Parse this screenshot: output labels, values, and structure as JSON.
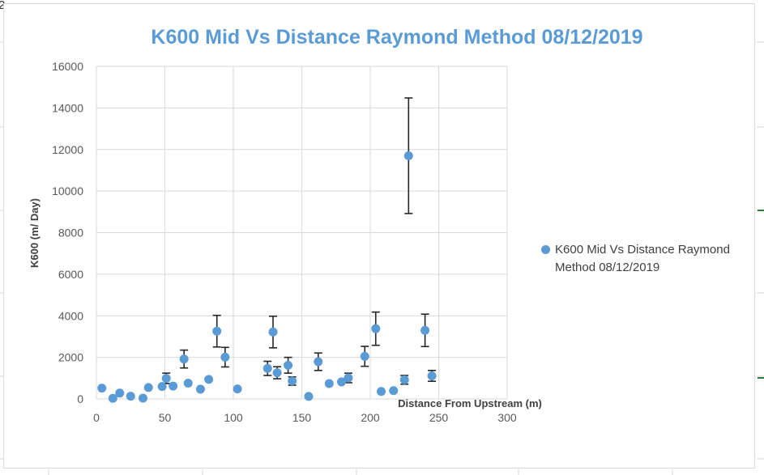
{
  "corner_text": "2",
  "chart_data": {
    "type": "scatter",
    "title": "K600 Mid Vs Distance Raymond Method 08/12/2019",
    "xlabel": "Distance From Upstream (m)",
    "ylabel": "K600 (m/ Day)",
    "xlim": [
      0,
      300
    ],
    "ylim": [
      0,
      16000
    ],
    "x_ticks": [
      "0",
      "50",
      "100",
      "150",
      "200",
      "250",
      "300"
    ],
    "y_ticks": [
      "0",
      "2000",
      "4000",
      "6000",
      "8000",
      "10000",
      "12000",
      "14000",
      "16000"
    ],
    "grid": true,
    "legend_position": "right",
    "series": [
      {
        "name": "K600 Mid Vs Distance Raymond Method 08/12/2019",
        "color": "#5b9bd5",
        "points": [
          {
            "x": 4,
            "y": 520,
            "err": 0
          },
          {
            "x": 12,
            "y": 30,
            "err": 0
          },
          {
            "x": 17,
            "y": 280,
            "err": 0
          },
          {
            "x": 25,
            "y": 130,
            "err": 0
          },
          {
            "x": 34,
            "y": 40,
            "err": 0
          },
          {
            "x": 38,
            "y": 550,
            "err": 0
          },
          {
            "x": 48,
            "y": 600,
            "err": 0
          },
          {
            "x": 51,
            "y": 990,
            "err": 250
          },
          {
            "x": 56,
            "y": 620,
            "err": 0
          },
          {
            "x": 64,
            "y": 1920,
            "err": 430
          },
          {
            "x": 67,
            "y": 760,
            "err": 0
          },
          {
            "x": 76,
            "y": 470,
            "err": 0
          },
          {
            "x": 82,
            "y": 940,
            "err": 0
          },
          {
            "x": 88,
            "y": 3260,
            "err": 760
          },
          {
            "x": 94,
            "y": 2010,
            "err": 470
          },
          {
            "x": 103,
            "y": 480,
            "err": 0
          },
          {
            "x": 125,
            "y": 1470,
            "err": 340
          },
          {
            "x": 129,
            "y": 3220,
            "err": 760
          },
          {
            "x": 132,
            "y": 1260,
            "err": 290
          },
          {
            "x": 140,
            "y": 1620,
            "err": 380
          },
          {
            "x": 143,
            "y": 860,
            "err": 200
          },
          {
            "x": 155,
            "y": 120,
            "err": 0
          },
          {
            "x": 162,
            "y": 1790,
            "err": 420
          },
          {
            "x": 170,
            "y": 740,
            "err": 0
          },
          {
            "x": 179,
            "y": 820,
            "err": 0
          },
          {
            "x": 184,
            "y": 1010,
            "err": 230
          },
          {
            "x": 196,
            "y": 2050,
            "err": 480
          },
          {
            "x": 204,
            "y": 3380,
            "err": 800
          },
          {
            "x": 208,
            "y": 360,
            "err": 0
          },
          {
            "x": 217,
            "y": 400,
            "err": 0
          },
          {
            "x": 225,
            "y": 920,
            "err": 210
          },
          {
            "x": 228,
            "y": 11700,
            "err": 2780
          },
          {
            "x": 240,
            "y": 3300,
            "err": 780
          },
          {
            "x": 245,
            "y": 1110,
            "err": 260
          }
        ]
      }
    ]
  }
}
